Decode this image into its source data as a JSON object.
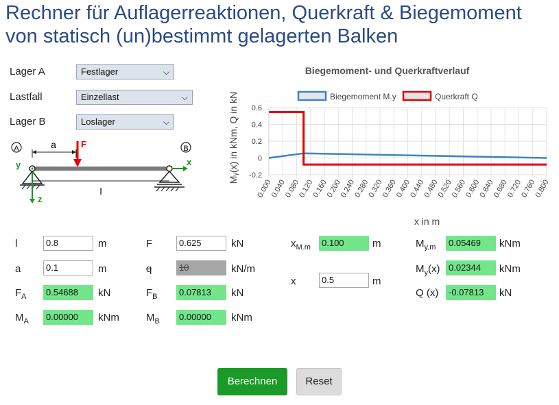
{
  "title_line1": "Rechner für Auflagerreaktionen, Querkraft & Biegemoment",
  "title_line2": "von statisch (un)bestimmt gelagerten Balken",
  "selects": {
    "lager_a": {
      "label": "Lager A",
      "value": "Festlager"
    },
    "lastfall": {
      "label": "Lastfall",
      "value": "Einzellast"
    },
    "lager_b": {
      "label": "Lager B",
      "value": "Loslager"
    }
  },
  "diagram": {
    "label_A": "A",
    "label_B": "B",
    "label_a": "a",
    "label_F": "F",
    "label_l": "l",
    "label_x": "x",
    "label_y": "y",
    "label_z": "z"
  },
  "inputs": {
    "l": {
      "label": "l",
      "value": "0.8",
      "unit": "m"
    },
    "a": {
      "label": "a",
      "value": "0.1",
      "unit": "m"
    },
    "FA": {
      "label": "F",
      "sub": "A",
      "value": "0.54688",
      "unit": "kN"
    },
    "MA": {
      "label": "M",
      "sub": "A",
      "value": "0.00000",
      "unit": "kNm"
    },
    "F": {
      "label": "F",
      "value": "0.625",
      "unit": "kN"
    },
    "q": {
      "label": "q",
      "value": "10",
      "unit": "kN/m"
    },
    "FB": {
      "label": "F",
      "sub": "B",
      "value": "0.07813",
      "unit": "kN"
    },
    "MB": {
      "label": "M",
      "sub": "B",
      "value": "0.00000",
      "unit": "kNm"
    },
    "xMm": {
      "label": "x",
      "sub": "M.m",
      "value": "0.100",
      "unit": "m"
    },
    "x": {
      "label": "x",
      "value": "0.5",
      "unit": "m"
    },
    "Mym": {
      "label": "M",
      "sub": "y.m",
      "value": "0.05469",
      "unit": "kNm"
    },
    "Myx": {
      "label": "M",
      "sub": "y",
      "suffix": "(x)",
      "value": "0.02344",
      "unit": "kNm"
    },
    "Qx": {
      "label": "Q (x)",
      "value": "-0.07813",
      "unit": "kN"
    }
  },
  "buttons": {
    "calc": "Berechnen",
    "reset": "Reset"
  },
  "colors": {
    "title": "#2b4a86",
    "green": "#73e68c",
    "btn_green": "#1a9a26",
    "moment": "#3d85c6",
    "shear": "#e60000"
  },
  "chart_data": {
    "type": "line",
    "title": "Biegemoment- und Querkraftverlauf",
    "xlabel": "x in m",
    "ylabel": "Mᵧ(x) in kNm, Q in kN",
    "ylim": [
      -0.2,
      0.6
    ],
    "xlim": [
      0,
      0.8
    ],
    "yticks": [
      "0.6",
      "0.4",
      "0.2",
      "0",
      "-0.2"
    ],
    "xticks": [
      "0.000",
      "0.040",
      "0.080",
      "0.120",
      "0.160",
      "0.200",
      "0.240",
      "0.280",
      "0.320",
      "0.360",
      "0.400",
      "0.440",
      "0.480",
      "0.520",
      "0.560",
      "0.600",
      "0.640",
      "0.680",
      "0.720",
      "0.760",
      "0.800"
    ],
    "legend_position": "top",
    "series": [
      {
        "name": "Biegemoment M.y",
        "color": "#3d85c6",
        "x": [
          0,
          0.1,
          0.8
        ],
        "y": [
          0,
          0.05469,
          0
        ]
      },
      {
        "name": "Querkraft Q",
        "color": "#e60000",
        "x": [
          0,
          0.1,
          0.1,
          0.8
        ],
        "y": [
          0.54688,
          0.54688,
          -0.07813,
          -0.07813
        ]
      }
    ]
  }
}
